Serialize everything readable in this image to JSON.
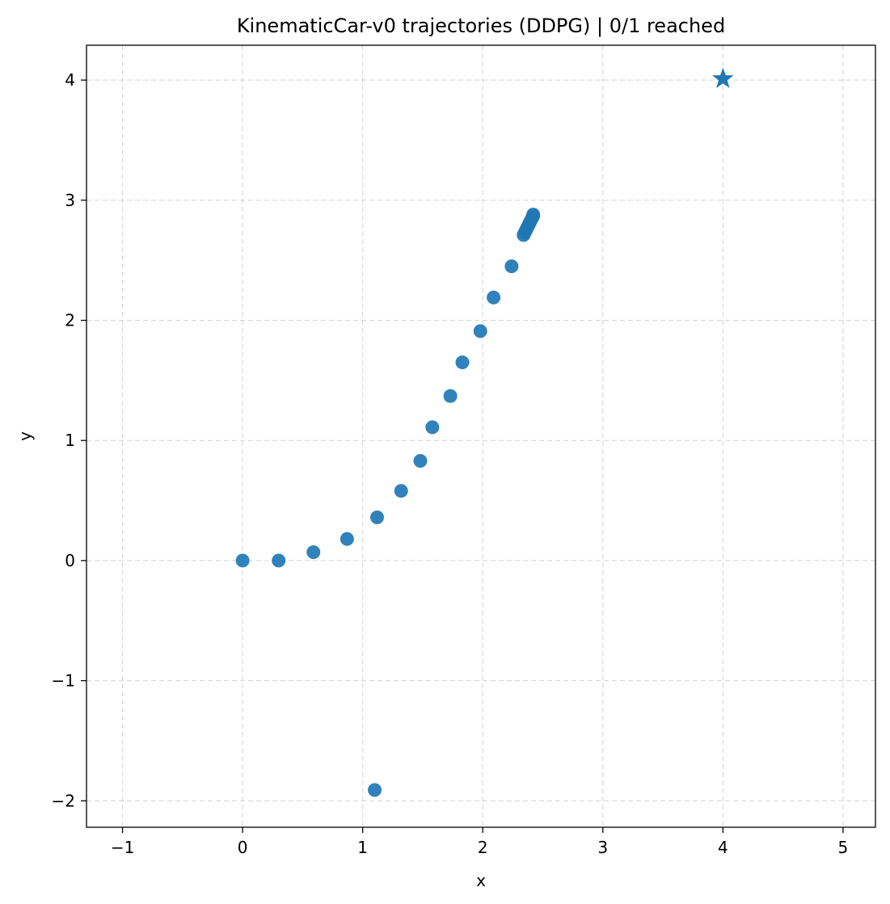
{
  "chart_data": {
    "type": "scatter",
    "title": "KinematicCar-v0 trajectories (DDPG) | 0/1 reached",
    "xlabel": "x",
    "ylabel": "y",
    "xlim": [
      -1.3,
      5.27
    ],
    "ylim": [
      -2.22,
      4.29
    ],
    "xticks": [
      -1,
      0,
      1,
      2,
      3,
      4,
      5
    ],
    "yticks": [
      -2,
      -1,
      0,
      1,
      2,
      3,
      4
    ],
    "xtick_labels": [
      "−1",
      "0",
      "1",
      "2",
      "3",
      "4",
      "5"
    ],
    "ytick_labels": [
      "−2",
      "−1",
      "0",
      "1",
      "2",
      "3",
      "4"
    ],
    "grid": true,
    "marker_color": "#1f77b4",
    "series": [
      {
        "points": [
          {
            "x": 0.0,
            "y": 0.0
          },
          {
            "x": 0.3,
            "y": 0.0
          },
          {
            "x": 0.59,
            "y": 0.07
          },
          {
            "x": 0.87,
            "y": 0.18
          },
          {
            "x": 1.12,
            "y": 0.36
          },
          {
            "x": 1.32,
            "y": 0.58
          },
          {
            "x": 1.48,
            "y": 0.83
          },
          {
            "x": 1.58,
            "y": 1.11
          },
          {
            "x": 1.73,
            "y": 1.37
          },
          {
            "x": 1.83,
            "y": 1.65
          },
          {
            "x": 1.98,
            "y": 1.91
          },
          {
            "x": 2.09,
            "y": 2.19
          },
          {
            "x": 2.24,
            "y": 2.45
          },
          {
            "x": 2.34,
            "y": 2.71
          },
          {
            "x": 2.35,
            "y": 2.73
          },
          {
            "x": 2.36,
            "y": 2.75
          },
          {
            "x": 2.37,
            "y": 2.77
          },
          {
            "x": 2.38,
            "y": 2.79
          },
          {
            "x": 2.39,
            "y": 2.81
          },
          {
            "x": 2.4,
            "y": 2.83
          },
          {
            "x": 2.41,
            "y": 2.85
          },
          {
            "x": 2.42,
            "y": 2.87
          },
          {
            "x": 2.42,
            "y": 2.88
          },
          {
            "x": 1.1,
            "y": -1.91
          }
        ]
      }
    ],
    "goal": {
      "x": 4.0,
      "y": 4.01,
      "marker": "star"
    }
  }
}
